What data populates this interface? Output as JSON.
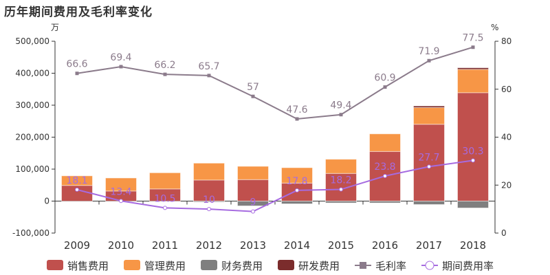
{
  "chart_data": {
    "type": "bar",
    "title": "历年期间费用及毛利率变化",
    "left_axis_unit": "万",
    "right_axis_unit": "%",
    "categories": [
      "2009",
      "2010",
      "2011",
      "2012",
      "2013",
      "2014",
      "2015",
      "2016",
      "2017",
      "2018"
    ],
    "left_ylim": [
      -100000,
      500000
    ],
    "left_ticks": [
      "-100,000",
      "0",
      "100,000",
      "200,000",
      "300,000",
      "400,000",
      "500,000"
    ],
    "right_ylim": [
      0,
      80
    ],
    "right_ticks": [
      "0",
      "20",
      "40",
      "60",
      "80"
    ],
    "legend_position": "bottom",
    "series": [
      {
        "name": "销售费用",
        "kind": "bar",
        "color": "#c0504d",
        "values": [
          49000,
          31500,
          38000,
          65900,
          67200,
          56400,
          86500,
          155200,
          240300,
          339100
        ]
      },
      {
        "name": "管理费用",
        "kind": "bar",
        "color": "#f79646",
        "values": [
          30000,
          40800,
          50600,
          52800,
          41600,
          48100,
          44400,
          55100,
          52200,
          72900
        ]
      },
      {
        "name": "财务费用",
        "kind": "bar",
        "color": "#7f7f7f",
        "values": [
          0,
          0,
          0,
          -2800,
          -15000,
          -8600,
          -5700,
          -5700,
          -10700,
          -21500
        ]
      },
      {
        "name": "研发费用",
        "kind": "bar",
        "color": "#7b2c2c",
        "values": [
          0,
          0,
          0,
          0,
          0,
          0,
          0,
          0,
          5100,
          5000
        ]
      },
      {
        "name": "毛利率",
        "kind": "line",
        "axis": "right",
        "color": "#8b7b8b",
        "values": [
          66.6,
          69.4,
          66.2,
          65.7,
          57,
          47.6,
          49.4,
          60.9,
          71.9,
          77.5
        ],
        "labels": [
          "66.6",
          "69.4",
          "66.2",
          "65.7",
          "57",
          "47.6",
          "49.4",
          "60.9",
          "71.9",
          "77.5"
        ]
      },
      {
        "name": "期间费用率",
        "kind": "line",
        "axis": "right",
        "color": "#a66be0",
        "values": [
          18.1,
          13.4,
          10.5,
          10,
          9,
          17.8,
          18.2,
          23.8,
          27.7,
          30.3
        ],
        "labels": [
          "18.1",
          "13.4",
          "10.5",
          "10",
          "9",
          "17.8",
          "18.2",
          "23.8",
          "27.7",
          "30.3"
        ]
      }
    ]
  }
}
